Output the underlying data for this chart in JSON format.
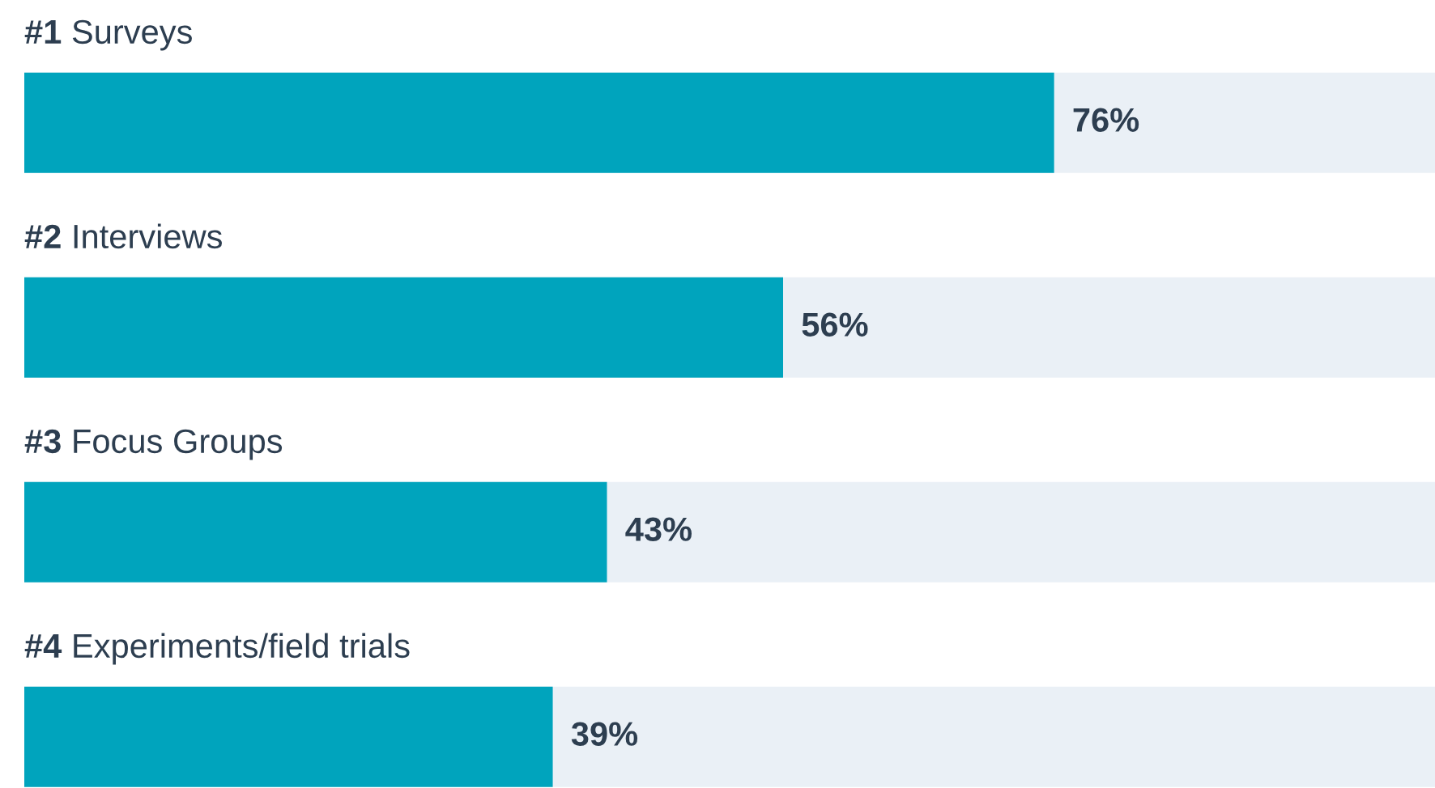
{
  "chart_data": {
    "type": "bar",
    "orientation": "horizontal",
    "categories": [
      "#1 Surveys",
      "#2 Interviews",
      "#3 Focus Groups",
      "#4 Experiments/field trials"
    ],
    "series": [
      {
        "color": "#00a4bd",
        "values": [
          76,
          56,
          43,
          39
        ],
        "value_labels": [
          "76%",
          "56%",
          "43%",
          "39%"
        ]
      }
    ]
  }
}
